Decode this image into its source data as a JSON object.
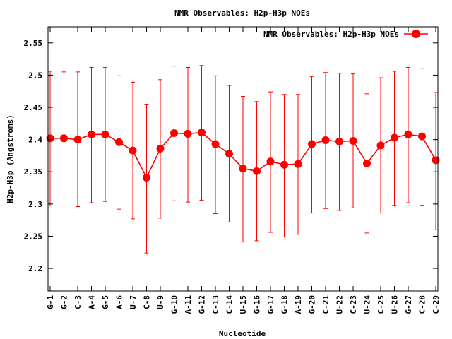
{
  "chart_data": {
    "type": "line",
    "title": "NMR Observables: H2p-H3p NOEs",
    "xlabel": "Nucleotide",
    "ylabel": "H2p-H3p (Angstroms)",
    "ylim": [
      2.165,
      2.575
    ],
    "yticks": [
      "2.2",
      "2.25",
      "2.3",
      "2.35",
      "2.4",
      "2.45",
      "2.5",
      "2.55"
    ],
    "ytick_values": [
      2.2,
      2.25,
      2.3,
      2.35,
      2.4,
      2.45,
      2.5,
      2.55
    ],
    "legend_position": "top-right",
    "grid": false,
    "categories": [
      "G-1",
      "G-2",
      "C-3",
      "A-4",
      "G-5",
      "A-6",
      "U-7",
      "C-8",
      "U-9",
      "G-10",
      "A-11",
      "G-12",
      "C-13",
      "C-14",
      "U-15",
      "G-16",
      "G-17",
      "G-18",
      "A-19",
      "G-20",
      "C-21",
      "U-22",
      "C-23",
      "U-24",
      "C-25",
      "U-26",
      "G-27",
      "C-28",
      "C-29"
    ],
    "series": [
      {
        "name": "NMR Observables: H2p-H3p NOEs",
        "color": "#ff0000",
        "values": [
          2.402,
          2.402,
          2.4,
          2.408,
          2.408,
          2.396,
          2.383,
          2.341,
          2.386,
          2.41,
          2.409,
          2.411,
          2.393,
          2.378,
          2.355,
          2.351,
          2.366,
          2.361,
          2.362,
          2.393,
          2.399,
          2.397,
          2.398,
          2.363,
          2.391,
          2.403,
          2.408,
          2.405,
          2.368
        ],
        "err_low": [
          2.297,
          2.297,
          2.296,
          2.302,
          2.304,
          2.292,
          2.277,
          2.224,
          2.278,
          2.305,
          2.303,
          2.306,
          2.285,
          2.272,
          2.241,
          2.243,
          2.256,
          2.249,
          2.253,
          2.286,
          2.293,
          2.29,
          2.294,
          2.255,
          2.286,
          2.298,
          2.302,
          2.298,
          2.26
        ],
        "err_high": [
          2.506,
          2.505,
          2.505,
          2.512,
          2.512,
          2.499,
          2.489,
          2.455,
          2.493,
          2.514,
          2.512,
          2.515,
          2.499,
          2.484,
          2.467,
          2.459,
          2.474,
          2.47,
          2.47,
          2.498,
          2.504,
          2.503,
          2.502,
          2.471,
          2.496,
          2.506,
          2.512,
          2.51,
          2.473
        ]
      }
    ]
  }
}
